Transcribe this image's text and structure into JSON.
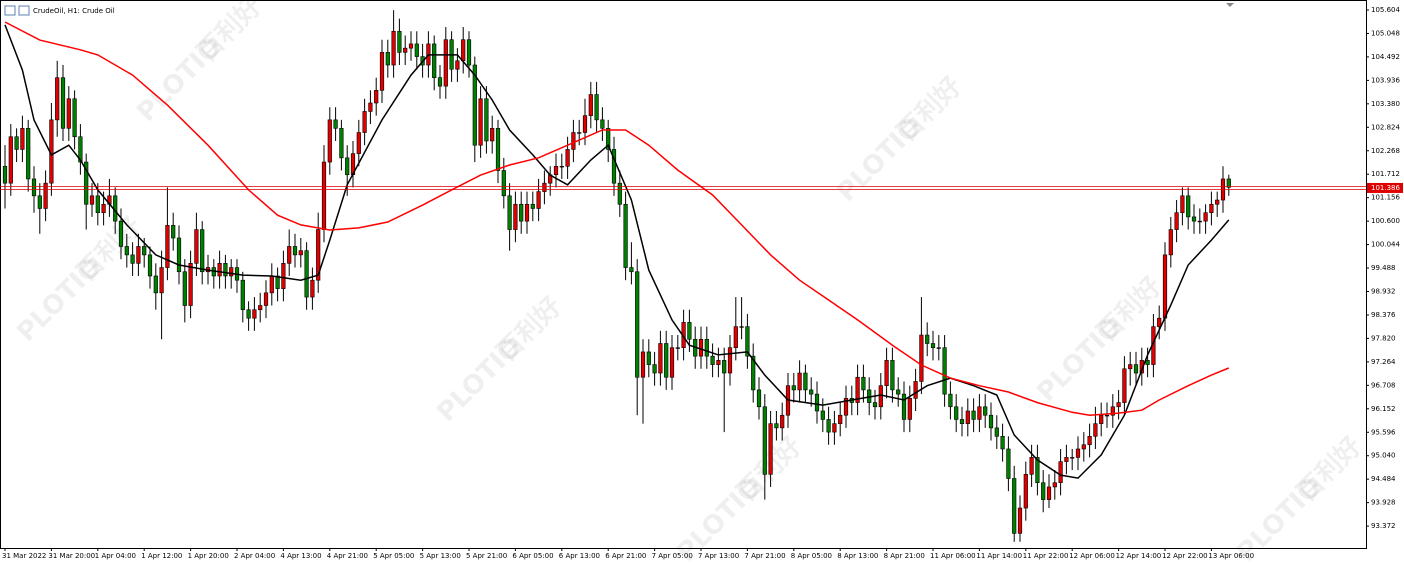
{
  "chart_data": {
    "type": "candlestick",
    "title": "CrudeOil, H1:  Crude Oil",
    "watermark": {
      "brand": "PLOTIO",
      "name": "百利好"
    },
    "ylim": [
      92.853,
      105.841
    ],
    "yticks": [
      {
        "value": 105.604,
        "label": "105.604"
      },
      {
        "value": 105.048,
        "label": "105.048"
      },
      {
        "value": 104.492,
        "label": "104.492"
      },
      {
        "value": 103.936,
        "label": "103.936"
      },
      {
        "value": 103.38,
        "label": "103.380"
      },
      {
        "value": 102.824,
        "label": "102.824"
      },
      {
        "value": 102.268,
        "label": "102.268"
      },
      {
        "value": 101.712,
        "label": "101.712"
      },
      {
        "value": 101.156,
        "label": "101.156"
      },
      {
        "value": 100.6,
        "label": "100.600"
      },
      {
        "value": 100.044,
        "label": "100.044"
      },
      {
        "value": 99.488,
        "label": "99.488"
      },
      {
        "value": 98.932,
        "label": "98.932"
      },
      {
        "value": 98.376,
        "label": "98.376"
      },
      {
        "value": 97.82,
        "label": "97.820"
      },
      {
        "value": 97.264,
        "label": "97.264"
      },
      {
        "value": 96.708,
        "label": "96.708"
      },
      {
        "value": 96.152,
        "label": "96.152"
      },
      {
        "value": 95.596,
        "label": "95.596"
      },
      {
        "value": 95.04,
        "label": "95.040"
      },
      {
        "value": 94.484,
        "label": "94.484"
      },
      {
        "value": 93.928,
        "label": "93.928"
      },
      {
        "value": 93.372,
        "label": "93.372"
      }
    ],
    "grid": false,
    "up_color": "#e00000",
    "down_color": "#008000",
    "last_price": 101.386,
    "last_price_color": "#e00000",
    "categories": [
      "31 Mar 2022",
      null,
      null,
      null,
      null,
      null,
      null,
      null,
      "31 Mar 20:00",
      null,
      null,
      null,
      null,
      null,
      null,
      null,
      "1 Apr 04:00",
      null,
      null,
      null,
      null,
      null,
      null,
      null,
      "1 Apr 12:00",
      null,
      null,
      null,
      null,
      null,
      null,
      null,
      "1 Apr 20:00",
      null,
      null,
      null,
      null,
      null,
      null,
      null,
      "2 Apr 04:00",
      null,
      null,
      null,
      null,
      null,
      null,
      null,
      "4 Apr 13:00",
      null,
      null,
      null,
      null,
      null,
      null,
      null,
      "4 Apr 21:00",
      null,
      null,
      null,
      null,
      null,
      null,
      null,
      "5 Apr 05:00",
      null,
      null,
      null,
      null,
      null,
      null,
      null,
      "5 Apr 13:00",
      null,
      null,
      null,
      null,
      null,
      null,
      null,
      "5 Apr 21:00",
      null,
      null,
      null,
      null,
      null,
      null,
      null,
      "6 Apr 05:00",
      null,
      null,
      null,
      null,
      null,
      null,
      null,
      "6 Apr 13:00",
      null,
      null,
      null,
      null,
      null,
      null,
      null,
      "6 Apr 21:00",
      null,
      null,
      null,
      null,
      null,
      null,
      null,
      "7 Apr 05:00",
      null,
      null,
      null,
      null,
      null,
      null,
      null,
      "7 Apr 13:00",
      null,
      null,
      null,
      null,
      null,
      null,
      null,
      "7 Apr 21:00",
      null,
      null,
      null,
      null,
      null,
      null,
      null,
      "8 Apr 05:00",
      null,
      null,
      null,
      null,
      null,
      null,
      null,
      "8 Apr 13:00",
      null,
      null,
      null,
      null,
      null,
      null,
      null,
      "8 Apr 21:00",
      null,
      null,
      null,
      null,
      null,
      null,
      null,
      "11 Apr 06:00",
      null,
      null,
      null,
      null,
      null,
      null,
      null,
      "11 Apr 14:00",
      null,
      null,
      null,
      null,
      null,
      null,
      null,
      "11 Apr 22:00",
      null,
      null,
      null,
      null,
      null,
      null,
      null,
      "12 Apr 06:00",
      null,
      null,
      null,
      null,
      null,
      null,
      null,
      "12 Apr 14:00",
      null,
      null,
      null,
      null,
      null,
      null,
      null,
      "12 Apr 22:00",
      null,
      null,
      null,
      null,
      null,
      null,
      null,
      "13 Apr 06:00",
      null,
      null,
      null
    ],
    "open": [
      101.9,
      101.5,
      102.6,
      102.3,
      102.8,
      101.6,
      101.2,
      100.9,
      101.5,
      103.0,
      104.0,
      102.8,
      103.5,
      102.6,
      102.0,
      101.0,
      101.2,
      100.8,
      101.0,
      101.2,
      100.6,
      100.0,
      99.8,
      99.6,
      100.0,
      99.8,
      99.3,
      98.9,
      99.5,
      100.5,
      100.2,
      99.4,
      98.6,
      99.6,
      100.4,
      99.4,
      99.5,
      99.3,
      99.6,
      99.3,
      99.5,
      99.2,
      98.5,
      98.3,
      98.5,
      98.6,
      98.9,
      99.3,
      99.0,
      99.6,
      100.0,
      99.8,
      99.9,
      98.8,
      99.2,
      100.4,
      102.0,
      103.0,
      102.8,
      102.1,
      101.7,
      102.2,
      102.7,
      103.2,
      103.4,
      103.7,
      104.6,
      104.3,
      105.1,
      104.6,
      104.7,
      104.8,
      104.5,
      104.3,
      104.8,
      104.0,
      103.8,
      104.9,
      104.2,
      104.4,
      104.9,
      104.3,
      102.4,
      103.5,
      102.5,
      102.8,
      101.8,
      101.2,
      100.4,
      101.0,
      100.6,
      101.0,
      100.9,
      101.3,
      101.5,
      101.7,
      101.9,
      101.9,
      102.3,
      102.7,
      102.7,
      103.1,
      103.6,
      103.0,
      102.8,
      102.3,
      101.5,
      101.0,
      99.5,
      99.4,
      96.9,
      97.5,
      97.2,
      97.0,
      97.7,
      96.9,
      97.6,
      97.6,
      98.2,
      97.8,
      97.4,
      97.8,
      97.4,
      97.2,
      97.3,
      97.0,
      97.6,
      98.1,
      98.1,
      97.4,
      96.6,
      96.2,
      94.6,
      95.8,
      95.7,
      96.0,
      96.7,
      96.6,
      97.0,
      96.6,
      96.5,
      96.1,
      95.9,
      95.6,
      95.8,
      96.0,
      96.4,
      96.3,
      96.9,
      96.6,
      96.3,
      96.2,
      96.7,
      97.3,
      96.6,
      96.5,
      95.9,
      96.4,
      96.8,
      97.9,
      97.7,
      97.6,
      97.6,
      96.5,
      96.2,
      95.9,
      95.8,
      96.1,
      95.9,
      96.2,
      96.0,
      95.7,
      95.5,
      95.2,
      94.5,
      93.2,
      93.8,
      94.6,
      95.0,
      94.4,
      94.0,
      94.3,
      94.4,
      94.9,
      95.0,
      95.0,
      95.2,
      95.3,
      95.5,
      95.8,
      96.0,
      96.0,
      96.2,
      96.3,
      97.1,
      97.2,
      97.0,
      97.3,
      97.2,
      98.1,
      98.3,
      99.8,
      100.4,
      100.8,
      101.2,
      100.7,
      100.6,
      100.6,
      100.8,
      101.0,
      101.1,
      101.6
    ],
    "high": [
      102.4,
      102.9,
      102.8,
      103.1,
      103.0,
      101.9,
      101.5,
      101.8,
      103.4,
      104.4,
      104.3,
      103.8,
      103.7,
      102.9,
      102.2,
      101.5,
      101.5,
      101.3,
      101.6,
      101.4,
      100.9,
      100.3,
      100.1,
      100.3,
      100.2,
      100.0,
      99.6,
      99.9,
      101.4,
      100.8,
      100.5,
      99.7,
      99.9,
      100.8,
      100.6,
      99.8,
      99.7,
      99.9,
      99.8,
      99.7,
      99.7,
      99.4,
      98.7,
      98.8,
      98.9,
      99.2,
      99.6,
      99.5,
      99.9,
      100.4,
      100.3,
      100.2,
      100.1,
      99.5,
      100.8,
      102.4,
      103.3,
      103.3,
      103.0,
      102.4,
      102.5,
      103.0,
      103.5,
      103.7,
      104.0,
      104.9,
      104.9,
      105.6,
      105.4,
      105.0,
      105.1,
      105.1,
      104.8,
      105.1,
      105.0,
      104.3,
      105.2,
      105.1,
      104.7,
      105.2,
      105.1,
      104.5,
      103.8,
      103.8,
      103.1,
      103.0,
      102.1,
      101.5,
      101.3,
      101.3,
      101.3,
      101.3,
      101.6,
      101.8,
      101.9,
      102.2,
      102.2,
      102.6,
      103.0,
      103.0,
      103.5,
      103.9,
      103.9,
      103.3,
      103.0,
      102.6,
      101.8,
      101.3,
      100.1,
      99.7,
      97.8,
      97.8,
      97.5,
      98.0,
      98.0,
      97.9,
      97.9,
      98.5,
      98.5,
      98.1,
      98.1,
      98.1,
      97.7,
      97.6,
      97.6,
      97.9,
      98.8,
      98.8,
      98.4,
      97.7,
      96.9,
      96.5,
      96.1,
      96.1,
      96.3,
      97.0,
      97.0,
      97.3,
      97.2,
      96.9,
      96.8,
      96.4,
      96.2,
      96.1,
      96.3,
      96.7,
      96.7,
      97.2,
      97.2,
      96.9,
      96.6,
      97.0,
      97.6,
      97.6,
      96.9,
      96.8,
      96.7,
      97.1,
      98.8,
      98.2,
      98.0,
      97.9,
      97.9,
      96.8,
      96.5,
      96.2,
      96.4,
      96.4,
      96.5,
      96.5,
      96.3,
      96.0,
      95.8,
      95.5,
      94.8,
      94.1,
      94.9,
      95.3,
      95.3,
      94.7,
      94.6,
      94.7,
      95.2,
      95.3,
      95.2,
      95.5,
      95.6,
      95.8,
      96.2,
      96.3,
      96.3,
      96.5,
      96.6,
      97.4,
      97.5,
      97.5,
      97.6,
      97.6,
      98.4,
      98.6,
      100.1,
      100.7,
      101.1,
      101.4,
      101.4,
      101.0,
      100.9,
      101.0,
      101.3,
      101.3,
      101.9,
      101.7
    ],
    "low": [
      100.9,
      101.2,
      102.0,
      102.0,
      101.3,
      100.8,
      100.3,
      100.6,
      101.2,
      102.6,
      102.5,
      102.5,
      102.3,
      101.7,
      100.4,
      100.7,
      100.5,
      100.5,
      100.7,
      100.3,
      99.7,
      99.5,
      99.3,
      99.3,
      99.5,
      99.0,
      98.5,
      97.8,
      99.2,
      99.9,
      99.1,
      98.2,
      98.3,
      99.3,
      99.1,
      99.1,
      99.0,
      99.0,
      99.0,
      99.0,
      98.9,
      98.2,
      98.0,
      98.0,
      98.2,
      98.3,
      98.6,
      98.7,
      98.7,
      99.3,
      99.5,
      99.5,
      98.5,
      98.5,
      98.9,
      100.1,
      101.7,
      102.5,
      101.8,
      101.2,
      101.4,
      101.9,
      102.4,
      102.9,
      103.1,
      103.4,
      104.0,
      104.0,
      104.3,
      104.3,
      104.4,
      104.2,
      104.0,
      104.0,
      103.7,
      103.5,
      103.5,
      103.9,
      103.9,
      104.1,
      104.0,
      102.0,
      102.1,
      102.2,
      102.2,
      101.5,
      100.9,
      99.9,
      100.1,
      100.3,
      100.3,
      100.6,
      100.6,
      101.0,
      101.2,
      101.4,
      101.6,
      101.6,
      102.0,
      102.4,
      102.4,
      102.8,
      102.7,
      102.5,
      102.0,
      101.2,
      100.7,
      99.2,
      99.1,
      96.0,
      95.8,
      96.9,
      96.7,
      96.7,
      96.6,
      96.6,
      97.3,
      97.3,
      97.5,
      97.1,
      97.1,
      97.1,
      96.9,
      96.9,
      95.6,
      96.7,
      97.3,
      97.8,
      97.1,
      96.3,
      95.9,
      94.0,
      94.3,
      95.4,
      95.4,
      95.7,
      96.3,
      96.3,
      96.3,
      96.2,
      95.8,
      95.6,
      95.3,
      95.3,
      95.5,
      95.7,
      96.0,
      96.0,
      96.3,
      96.0,
      95.9,
      95.9,
      96.4,
      96.3,
      96.2,
      95.6,
      95.6,
      96.1,
      96.5,
      97.4,
      97.3,
      97.3,
      96.2,
      95.9,
      95.6,
      95.5,
      95.5,
      95.6,
      95.6,
      95.7,
      95.4,
      95.2,
      94.9,
      94.2,
      93.0,
      93.0,
      93.5,
      94.3,
      94.1,
      93.7,
      93.8,
      94.0,
      94.1,
      94.6,
      94.7,
      94.7,
      94.9,
      95.0,
      95.2,
      95.5,
      95.7,
      95.7,
      95.9,
      96.0,
      96.7,
      96.7,
      96.7,
      96.9,
      96.9,
      97.8,
      98.0,
      99.5,
      100.1,
      100.5,
      100.4,
      100.3,
      100.3,
      100.3,
      100.5,
      100.7,
      100.8,
      101.2
    ],
    "close": [
      101.5,
      102.6,
      102.3,
      102.8,
      101.6,
      101.2,
      100.9,
      101.5,
      103.0,
      104.0,
      102.8,
      103.5,
      102.6,
      102.0,
      101.0,
      101.2,
      100.8,
      101.0,
      101.2,
      100.6,
      100.0,
      99.8,
      99.6,
      100.0,
      99.8,
      99.3,
      98.9,
      99.5,
      100.5,
      100.2,
      99.4,
      98.6,
      99.6,
      100.4,
      99.4,
      99.5,
      99.3,
      99.6,
      99.3,
      99.5,
      99.2,
      98.5,
      98.3,
      98.5,
      98.6,
      98.9,
      99.3,
      99.0,
      99.6,
      100.0,
      99.8,
      99.9,
      98.8,
      99.2,
      100.4,
      102.0,
      103.0,
      102.8,
      102.1,
      101.7,
      102.2,
      102.7,
      103.2,
      103.4,
      103.7,
      104.6,
      104.3,
      105.1,
      104.6,
      104.7,
      104.8,
      104.5,
      104.3,
      104.8,
      104.0,
      103.8,
      104.9,
      104.2,
      104.4,
      104.9,
      104.3,
      102.4,
      103.5,
      102.5,
      102.8,
      101.8,
      101.2,
      100.4,
      101.0,
      100.6,
      101.0,
      100.9,
      101.3,
      101.5,
      101.7,
      101.9,
      101.9,
      102.3,
      102.7,
      102.7,
      103.1,
      103.6,
      103.0,
      102.8,
      102.3,
      101.5,
      101.0,
      99.5,
      99.4,
      96.9,
      97.5,
      97.2,
      97.0,
      97.7,
      96.9,
      97.6,
      97.6,
      98.2,
      97.8,
      97.4,
      97.8,
      97.4,
      97.2,
      97.3,
      97.0,
      97.6,
      98.1,
      98.1,
      97.4,
      96.6,
      96.2,
      94.6,
      95.8,
      95.7,
      96.0,
      96.7,
      96.6,
      97.0,
      96.6,
      96.5,
      96.1,
      95.9,
      95.6,
      95.8,
      96.0,
      96.4,
      96.3,
      96.9,
      96.6,
      96.3,
      96.2,
      96.7,
      97.3,
      96.6,
      96.5,
      95.9,
      96.4,
      96.8,
      97.9,
      97.7,
      97.6,
      97.6,
      96.5,
      96.2,
      95.9,
      95.8,
      96.1,
      95.9,
      96.2,
      96.0,
      95.7,
      95.5,
      95.2,
      94.5,
      93.2,
      93.8,
      94.6,
      95.0,
      94.4,
      94.0,
      94.3,
      94.4,
      94.9,
      95.0,
      95.0,
      95.2,
      95.3,
      95.5,
      95.8,
      96.0,
      96.0,
      96.2,
      96.3,
      97.1,
      97.2,
      97.0,
      97.3,
      97.2,
      98.1,
      98.3,
      99.8,
      100.4,
      100.8,
      101.2,
      100.7,
      100.6,
      100.6,
      100.8,
      101.0,
      101.1,
      101.6,
      101.4
    ],
    "moving_averages": [
      {
        "color": "#000000",
        "x": [
          0,
          3,
          5,
          8,
          11,
          13,
          16,
          21,
          26,
          30,
          35,
          41,
          46,
          51,
          54,
          56,
          59,
          65,
          70,
          73,
          78,
          81,
          84,
          87,
          91,
          94,
          97,
          101,
          104,
          108,
          111,
          115,
          118,
          123,
          128,
          131,
          135,
          141,
          146,
          151,
          155,
          159,
          163,
          167,
          171,
          174,
          178,
          182,
          185,
          189,
          193,
          197,
          201,
          204,
          208,
          211
        ],
        "values": [
          105.25,
          104.18,
          103.0,
          102.17,
          102.4,
          102.05,
          101.34,
          100.51,
          99.8,
          99.56,
          99.44,
          99.32,
          99.3,
          99.2,
          99.32,
          100.15,
          101.46,
          103.0,
          104.06,
          104.54,
          104.54,
          104.06,
          103.47,
          102.76,
          102.17,
          101.69,
          101.46,
          102.05,
          102.4,
          101.1,
          99.44,
          98.26,
          97.66,
          97.43,
          97.5,
          96.95,
          96.36,
          96.24,
          96.36,
          96.48,
          96.36,
          96.7,
          96.88,
          96.7,
          96.48,
          95.53,
          94.94,
          94.58,
          94.51,
          95.06,
          96.0,
          97.43,
          98.61,
          99.56,
          100.15,
          100.63
        ]
      },
      {
        "color": "#ff0000",
        "x": [
          0,
          6,
          13,
          16,
          22,
          28,
          35,
          42,
          47,
          51,
          56,
          61,
          66,
          72,
          77,
          82,
          87,
          92,
          97,
          103,
          107,
          111,
          116,
          122,
          127,
          132,
          137,
          142,
          147,
          153,
          158,
          163,
          168,
          173,
          178,
          184,
          187,
          192,
          196,
          199,
          204,
          208,
          211
        ],
        "values": [
          105.32,
          104.89,
          104.66,
          104.54,
          104.06,
          103.35,
          102.4,
          101.34,
          100.74,
          100.51,
          100.39,
          100.44,
          100.58,
          100.98,
          101.34,
          101.69,
          101.93,
          102.1,
          102.4,
          102.76,
          102.76,
          102.4,
          101.81,
          101.22,
          100.51,
          99.8,
          99.2,
          98.73,
          98.26,
          97.66,
          97.19,
          96.88,
          96.7,
          96.55,
          96.3,
          96.07,
          96.0,
          96.05,
          96.12,
          96.36,
          96.7,
          96.95,
          97.12
        ]
      }
    ]
  }
}
